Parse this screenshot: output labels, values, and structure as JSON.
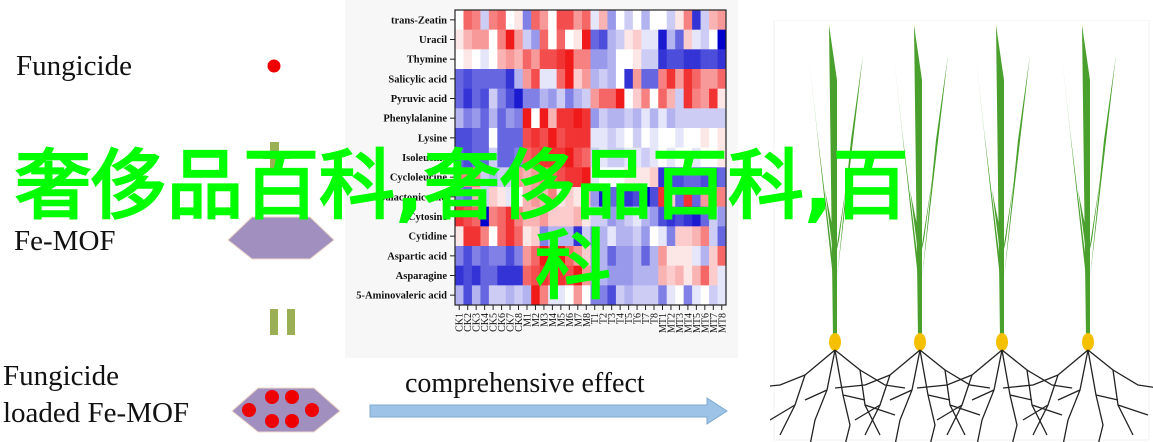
{
  "left": {
    "fungicide_label": "Fungicide",
    "fe_mof_label": "Fe-MOF",
    "loaded_label_line1": "Fungicide",
    "loaded_label_line2": "loaded Fe-MOF",
    "plus_symbol": "plus-icon",
    "equals_symbol": "equals-icon"
  },
  "arrow": {
    "label": "comprehensive effect",
    "color": "#9dc3e6"
  },
  "colors": {
    "fungicide_dot": "#ee0000",
    "mof_hexagon": "#a08fbf",
    "operator": "#9bb055",
    "leaf": "#4aa02c",
    "seed": "#f5c000"
  },
  "watermark": {
    "line1": "奢侈品百科,奢侈品百科,百",
    "line2": "科",
    "color": "#00ff00"
  },
  "chart_data": {
    "type": "heatmap",
    "rows": [
      "trans-Zeatin",
      "Uracil",
      "Thymine",
      "Salicylic acid",
      "Pyruvic acid",
      "Phenylalanine",
      "Lysine",
      "Isoleucine",
      "Cycloleucine",
      "Galactonic acid",
      "Cytosine",
      "Cytidine",
      "Aspartic acid",
      "Asparagine",
      "5-Aminovaleric acid"
    ],
    "columns": [
      "CK1",
      "CK2",
      "CK3",
      "CK4",
      "CK5",
      "CK6",
      "CK7",
      "CK8",
      "M1",
      "M2",
      "M3",
      "M4",
      "M5",
      "M6",
      "M7",
      "M8",
      "T1",
      "T2",
      "T3",
      "T4",
      "T5",
      "T6",
      "T7",
      "T8",
      "MT1",
      "MT2",
      "MT3",
      "MT4",
      "MT5",
      "MT6",
      "MT7",
      "MT8"
    ],
    "color_scale": {
      "low": "#0000cc",
      "mid": "#ffffff",
      "high": "#ee0000"
    },
    "value_range": [
      -1,
      1
    ],
    "values": [
      [
        0,
        0.6,
        0.5,
        -0.2,
        0.5,
        0.6,
        0,
        0.1,
        -0.5,
        0.6,
        0.4,
        0,
        0.7,
        0.7,
        0.4,
        0.6,
        -0.1,
        0.3,
        -0.4,
        0,
        -0.2,
        0,
        -0.3,
        0,
        0,
        -0.2,
        0.1,
        0.5,
        -0.8,
        -0.2,
        0.3,
        0.4
      ],
      [
        0.1,
        0.3,
        0.4,
        0.4,
        0,
        0.5,
        0.9,
        0.4,
        -0.2,
        -0.4,
        0.6,
        0,
        0.6,
        0,
        0.1,
        0.9,
        -0.6,
        -0.7,
        -0.3,
        -0.2,
        0.1,
        0.2,
        -0.1,
        -0.1,
        -0.9,
        -0.3,
        -0.6,
        0.2,
        -0.1,
        -0.2,
        0,
        -1
      ],
      [
        0,
        0.1,
        0,
        -0.1,
        0,
        0.3,
        0.4,
        0.3,
        0.6,
        0.4,
        0.7,
        0.7,
        0.8,
        0.9,
        0.5,
        0.5,
        -0.4,
        -0.4,
        -0.3,
        0,
        0,
        0.1,
        -0.2,
        -0.2,
        -0.8,
        -0.7,
        -0.7,
        -0.8,
        -0.8,
        -0.7,
        -0.7,
        -0.8
      ],
      [
        -0.6,
        -0.7,
        -0.6,
        -0.6,
        -0.6,
        -0.6,
        -0.8,
        -0.3,
        0.4,
        0.7,
        -0.1,
        -0.1,
        0.6,
        0.9,
        0.2,
        0.4,
        -0.3,
        -0.2,
        -0.3,
        0,
        -0.8,
        0.4,
        -0.6,
        -0.6,
        0.5,
        0.8,
        0.4,
        0.8,
        0.6,
        0.4,
        0.4,
        0.6
      ],
      [
        -0.6,
        -0.8,
        -0.6,
        -0.7,
        -0.2,
        -0.5,
        -0.7,
        -0.9,
        -0.5,
        -0.5,
        -0.3,
        -0.4,
        -0.2,
        -0.5,
        -0.3,
        -0.2,
        0.4,
        0.6,
        0.6,
        0.9,
        0,
        0.2,
        0.5,
        0,
        0.6,
        0.3,
        -0.2,
        0.8,
        0.5,
        0.4,
        0.8,
        0.1
      ],
      [
        -0.3,
        -0.5,
        -0.4,
        -0.6,
        -0.3,
        -0.6,
        -0.4,
        -0.5,
        0.9,
        0,
        0.9,
        0.3,
        0.8,
        0.8,
        0.9,
        0.8,
        -0.4,
        -0.2,
        -0.3,
        -0.3,
        -0.2,
        -0.3,
        -0.1,
        -0.3,
        -0.1,
        -0.3,
        -0.2,
        -0.2,
        -0.2,
        -0.2,
        -0.2,
        -0.2
      ],
      [
        -0.7,
        -0.7,
        -0.6,
        -0.6,
        0,
        -0.6,
        -0.6,
        -0.6,
        0.7,
        0.8,
        0.7,
        0.9,
        0.7,
        0.8,
        0.8,
        0.8,
        -0.1,
        -0.1,
        -0.2,
        -0.1,
        0,
        -0.2,
        0,
        -0.1,
        0,
        0,
        -0.1,
        0,
        0,
        0.1,
        0,
        0.1
      ],
      [
        -0.6,
        -0.7,
        -0.6,
        -0.6,
        -0.2,
        -0.6,
        -0.6,
        -0.5,
        0.6,
        0.7,
        0.8,
        0.8,
        0.8,
        0.9,
        0.7,
        0.6,
        -0.2,
        -0.1,
        -0.2,
        -0.2,
        -0.1,
        -0.1,
        -0.2,
        -0.1,
        0,
        -0.1,
        0,
        0,
        -0.1,
        0,
        0,
        0.1
      ],
      [
        0.5,
        0.5,
        0.5,
        -0.2,
        -0.3,
        -0.2,
        -0.2,
        0.4,
        0.3,
        0.4,
        0.5,
        0.6,
        0.7,
        0.8,
        0.8,
        0.9,
        -0.1,
        0,
        0,
        0,
        0.1,
        0.1,
        0.1,
        0.2,
        -0.8,
        -0.7,
        -0.7,
        -0.6,
        -0.6,
        -0.7,
        -0.7,
        -0.6
      ],
      [
        -0.5,
        -0.6,
        0.3,
        -0.2,
        0.2,
        0.1,
        -0.1,
        0,
        0.3,
        0.4,
        0.3,
        0.5,
        0.1,
        0.2,
        0.1,
        0.3,
        -0.4,
        -0.9,
        -0.6,
        -0.6,
        -0.8,
        -0.7,
        -1,
        -0.7,
        0.8,
        0.2,
        -0.6,
        0.8,
        -0.6,
        0.4,
        0.5,
        0.5
      ],
      [
        0.8,
        0.7,
        0.6,
        -1,
        0.5,
        0.6,
        0.8,
        0.5,
        0.3,
        0.3,
        0.4,
        0.2,
        0.2,
        0.2,
        0.3,
        0.1,
        -0.2,
        -0.2,
        -0.4,
        -0.3,
        -0.2,
        -0.1,
        -0.3,
        -0.4,
        -0.7,
        -0.8,
        -0.7,
        -0.8,
        -0.9,
        -0.6,
        -0.2,
        -0.4
      ],
      [
        0.1,
        0.8,
        0.8,
        0.5,
        0,
        0.6,
        0.8,
        0.6,
        0.1,
        0.2,
        -0.5,
        -0.3,
        -0.3,
        -0.3,
        -0.8,
        -0.2,
        -0.5,
        -0.3,
        -0.1,
        -0.3,
        -0.3,
        -0.2,
        -0.4,
        0,
        -0.1,
        -0.5,
        0.2,
        0.2,
        0.3,
        0.5,
        -0.2,
        -0.6
      ],
      [
        -0.5,
        -0.7,
        -0.5,
        -0.6,
        -0.5,
        -0.5,
        -0.7,
        -0.5,
        0.4,
        0.6,
        0.9,
        0.6,
        0.9,
        0.6,
        0.4,
        0.2,
        -0.4,
        -0.3,
        -0.6,
        -0.4,
        -0.4,
        -0.3,
        -0.6,
        -0.3,
        0.4,
        0.1,
        0.1,
        0.1,
        -0.1,
        -0.3,
        0.2,
        0.6
      ],
      [
        -0.8,
        -0.7,
        -0.8,
        -0.6,
        -0.6,
        -0.8,
        -0.8,
        -0.8,
        0.6,
        0.7,
        0.8,
        0.7,
        0.8,
        0.7,
        0.9,
        0.4,
        -0.4,
        -0.3,
        -0.4,
        -0.4,
        -0.4,
        -0.3,
        -0.3,
        -0.3,
        0.3,
        0.2,
        0.3,
        0.1,
        0.3,
        0.6,
        0.2,
        -0.1
      ],
      [
        -0.3,
        -0.7,
        -0.3,
        -0.6,
        -0.2,
        -0.2,
        -0.3,
        -0.2,
        -0.3,
        0.9,
        0.5,
        -0.1,
        -0.1,
        0,
        0.4,
        0,
        -0.5,
        -0.5,
        -0.7,
        -0.2,
        -0.3,
        -0.2,
        -0.2,
        -0.2,
        -0.5,
        -0.1,
        0,
        -0.5,
        -0.1,
        0,
        -0.2,
        -0.1
      ]
    ]
  }
}
